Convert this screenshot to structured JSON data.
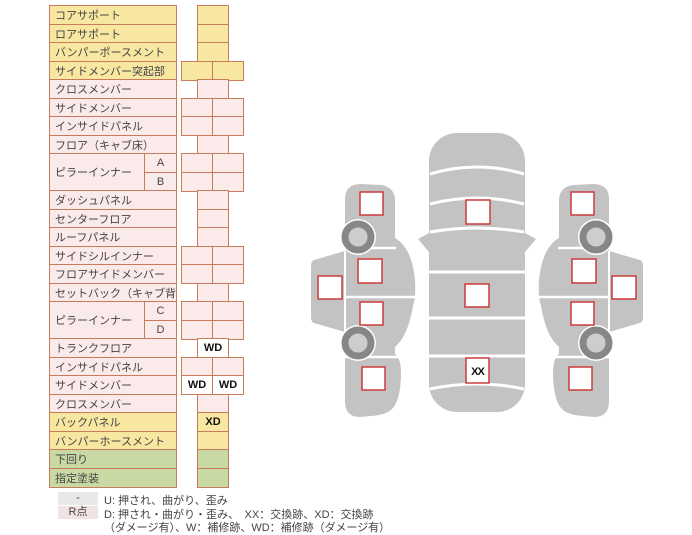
{
  "table": {
    "colors": {
      "yellow": "#f7e7a0",
      "pink": "#fbeaea",
      "green": "#c9d9a4",
      "white": "#ffffff",
      "border": "#c97c5c",
      "text": "#444444"
    },
    "rows": [
      {
        "label": "コアサポート",
        "color": "yellow",
        "cells": "single",
        "values": [
          ""
        ]
      },
      {
        "label": "ロアサポート",
        "color": "yellow",
        "cells": "single",
        "values": [
          ""
        ]
      },
      {
        "label": "バンパーポースメント",
        "color": "yellow",
        "cells": "single",
        "values": [
          ""
        ]
      },
      {
        "label": "サイドメンバー突起部",
        "color": "yellow",
        "cells": "double",
        "values": [
          "",
          ""
        ]
      },
      {
        "label": "クロスメンバー",
        "color": "pink",
        "cells": "single",
        "values": [
          ""
        ]
      },
      {
        "label": "サイドメンバー",
        "color": "pink",
        "cells": "double",
        "values": [
          "",
          ""
        ]
      },
      {
        "label": "インサイドパネル",
        "color": "pink",
        "cells": "double",
        "values": [
          "",
          ""
        ]
      },
      {
        "label": "フロア（キャブ床）",
        "color": "pink",
        "cells": "single",
        "values": [
          ""
        ]
      },
      {
        "label": "ピラーインナー",
        "sub": "A",
        "labelSpan": 2,
        "color": "pink",
        "cells": "double",
        "values": [
          "",
          ""
        ]
      },
      {
        "sub": "B",
        "labelSkip": true,
        "color": "pink",
        "cells": "double",
        "values": [
          "",
          ""
        ]
      },
      {
        "label": "ダッシュパネル",
        "color": "pink",
        "cells": "single",
        "values": [
          ""
        ]
      },
      {
        "label": "センターフロア",
        "color": "pink",
        "cells": "single",
        "values": [
          ""
        ]
      },
      {
        "label": "ルーフパネル",
        "color": "pink",
        "cells": "single",
        "values": [
          ""
        ]
      },
      {
        "label": "サイドシルインナー",
        "color": "pink",
        "cells": "double",
        "values": [
          "",
          ""
        ]
      },
      {
        "label": "フロアサイドメンバー",
        "color": "pink",
        "cells": "double",
        "values": [
          "",
          ""
        ]
      },
      {
        "label": "セットバック（キャブ背）",
        "color": "pink",
        "cells": "single",
        "values": [
          ""
        ]
      },
      {
        "label": "ピラーインナー",
        "sub": "C",
        "labelSpan": 2,
        "color": "pink",
        "cells": "double",
        "values": [
          "",
          ""
        ]
      },
      {
        "sub": "D",
        "labelSkip": true,
        "color": "pink",
        "cells": "double",
        "values": [
          "",
          ""
        ]
      },
      {
        "label": "トランクフロア",
        "color": "pink",
        "cells": "single",
        "values": [
          "WD"
        ]
      },
      {
        "label": "インサイドパネル",
        "color": "pink",
        "cells": "double",
        "values": [
          "",
          ""
        ]
      },
      {
        "label": "サイドメンバー",
        "color": "pink",
        "cells": "double",
        "values": [
          "WD",
          "WD"
        ]
      },
      {
        "label": "クロスメンバー",
        "color": "pink",
        "cells": "single",
        "values": [
          ""
        ]
      },
      {
        "label": "バックパネル",
        "color": "yellow",
        "cells": "single",
        "values": [
          "XD"
        ]
      },
      {
        "label": "バンパーホースメント",
        "color": "yellow",
        "cells": "single",
        "values": [
          ""
        ]
      },
      {
        "label": "下回り",
        "color": "green",
        "cells": "single",
        "values": [
          ""
        ]
      },
      {
        "label": "指定塗装",
        "color": "green",
        "cells": "single",
        "values": [
          ""
        ]
      }
    ]
  },
  "legend": {
    "key1": "-",
    "key1_bg": "#e8e8e8",
    "line1": "U: 押され、曲がり、歪み",
    "key2": "R点",
    "key2_bg": "#f2e3e3",
    "line2": "D: 押され・曲がり・歪み、　XX：交換跡、XD：交換跡",
    "line3": "（ダメージ有）、W：補修跡、WD：補修跡（ダメージ有）"
  },
  "diagram": {
    "trunk_mark": "XX",
    "colors": {
      "body": "#c3c3c3",
      "wheel_ring": "#878787",
      "wheel_hub": "#cdcdcd",
      "marker_fill": "#ffffff",
      "marker_border": "#cc3b3b",
      "mark_text": "#111111"
    }
  }
}
